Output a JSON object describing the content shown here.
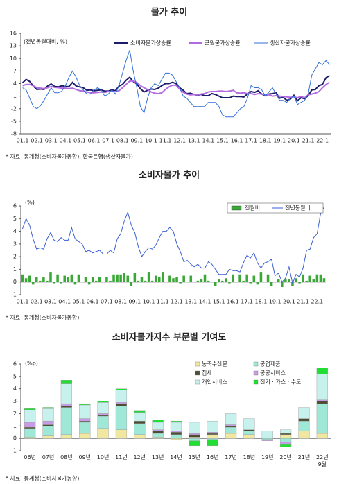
{
  "chart_data": [
    {
      "type": "line",
      "title": "물가 추이",
      "y_label": "(전년동월대비, %)",
      "source": "* 자료: 통계청(소비자물가동향), 한국은행(생산자물가)",
      "categories": [
        "01.1",
        null,
        null,
        null,
        "02.1",
        null,
        null,
        null,
        "03.1",
        null,
        null,
        null,
        "04.1",
        null,
        null,
        null,
        "05.1",
        null,
        null,
        null,
        "06.1",
        null,
        null,
        null,
        "07.1",
        null,
        null,
        null,
        "08.1",
        null,
        null,
        null,
        "09.1",
        null,
        null,
        null,
        "10.1",
        null,
        null,
        null,
        "11.1",
        null,
        null,
        null,
        "12.1",
        null,
        null,
        null,
        "13.1",
        null,
        null,
        null,
        "14.1",
        null,
        null,
        null,
        "15.1",
        null,
        null,
        null,
        "16.1",
        null,
        null,
        null,
        "17.1",
        null,
        null,
        null,
        "18.1",
        null,
        null,
        null,
        "19.1",
        null,
        null,
        null,
        "20.1",
        null,
        null,
        null,
        "21.1",
        null,
        null,
        null,
        "22.1",
        null,
        null
      ],
      "ylim": [
        -8,
        16
      ],
      "yticks": [
        -8,
        -5,
        -2,
        1,
        4,
        7,
        10,
        13,
        16
      ],
      "grid": false,
      "legend": "top-right",
      "series": [
        {
          "name": "소비자물가상승률",
          "color": "#1c1c6b",
          "width": 2,
          "values": [
            4.2,
            5.0,
            4.5,
            3.4,
            2.6,
            2.7,
            2.6,
            3.4,
            3.9,
            3.3,
            3.2,
            3.5,
            3.3,
            3.3,
            4.3,
            3.4,
            3.2,
            3.0,
            2.4,
            2.5,
            2.3,
            2.4,
            2.5,
            2.2,
            2.2,
            2.5,
            2.3,
            3.4,
            3.8,
            4.8,
            5.5,
            4.5,
            3.9,
            2.8,
            2.0,
            2.4,
            2.7,
            2.6,
            2.9,
            3.5,
            4.0,
            4.0,
            4.3,
            4.0,
            3.0,
            2.4,
            1.6,
            1.7,
            1.4,
            1.2,
            1.4,
            1.1,
            1.1,
            1.6,
            1.4,
            1.0,
            0.6,
            0.6,
            0.6,
            1.0,
            0.9,
            0.9,
            0.8,
            1.5,
            2.1,
            1.9,
            2.3,
            1.5,
            1.1,
            1.5,
            1.6,
            1.8,
            0.5,
            0.7,
            0.0,
            0.3,
            1.2,
            -0.1,
            0.6,
            0.4,
            1.1,
            2.5,
            2.6,
            3.5,
            3.8,
            5.4,
            5.9
          ]
        },
        {
          "name": "근원물가상승률",
          "color": "#b26ae0",
          "width": 2,
          "values": [
            3.5,
            3.8,
            3.8,
            3.5,
            3.0,
            2.9,
            2.8,
            3.0,
            3.3,
            3.1,
            3.0,
            2.9,
            2.9,
            2.8,
            2.9,
            2.6,
            2.3,
            2.2,
            2.0,
            1.8,
            1.8,
            1.9,
            2.0,
            1.9,
            2.1,
            2.1,
            2.1,
            2.3,
            3.0,
            3.8,
            4.6,
            4.6,
            4.3,
            3.5,
            3.0,
            2.6,
            2.0,
            1.7,
            1.6,
            1.8,
            2.6,
            3.2,
            3.6,
            3.6,
            2.7,
            1.9,
            1.5,
            1.3,
            1.4,
            1.3,
            1.5,
            1.6,
            2.0,
            2.1,
            2.1,
            2.2,
            2.2,
            2.1,
            2.2,
            2.4,
            1.8,
            1.7,
            1.8,
            1.6,
            1.6,
            1.4,
            1.6,
            1.5,
            1.3,
            1.3,
            1.0,
            1.1,
            1.0,
            0.9,
            0.8,
            0.7,
            0.8,
            0.6,
            0.9,
            0.6,
            1.3,
            1.5,
            1.7,
            2.1,
            3.0,
            3.8,
            4.3
          ]
        },
        {
          "name": "생산자물가상승률",
          "color": "#3070d8",
          "width": 1,
          "values": [
            3.0,
            2.5,
            0.5,
            -1.5,
            -2.0,
            -1.3,
            0.0,
            1.5,
            3.0,
            1.8,
            1.8,
            2.2,
            3.5,
            5.5,
            7.0,
            5.5,
            3.5,
            2.5,
            1.5,
            1.5,
            2.5,
            3.0,
            2.5,
            1.0,
            1.5,
            2.5,
            1.5,
            3.5,
            6.5,
            9.5,
            12.0,
            7.0,
            3.0,
            -1.5,
            -3.0,
            0.5,
            3.0,
            4.0,
            3.5,
            5.0,
            6.5,
            6.5,
            6.0,
            4.5,
            3.0,
            1.0,
            0.5,
            -0.5,
            -1.5,
            -1.5,
            -1.5,
            -1.5,
            -0.5,
            -0.5,
            -0.5,
            -1.5,
            -3.5,
            -4.0,
            -4.0,
            -4.0,
            -3.0,
            -2.0,
            -1.5,
            0.5,
            3.5,
            3.0,
            3.0,
            2.5,
            1.0,
            2.0,
            3.0,
            1.5,
            0.0,
            0.0,
            -0.5,
            0.5,
            1.0,
            -1.0,
            -0.5,
            0.0,
            1.5,
            6.0,
            7.5,
            9.0,
            8.5,
            9.5,
            8.5
          ]
        }
      ]
    },
    {
      "type": "combo",
      "title": "소비자물가 추이",
      "y_label": "(%)",
      "source": "* 자료: 통계청(소비자물가동향)",
      "categories": [
        "01.1",
        null,
        null,
        null,
        "02.1",
        null,
        null,
        null,
        "03.1",
        null,
        null,
        null,
        "04.1",
        null,
        null,
        null,
        "05.1",
        null,
        null,
        null,
        "06.1",
        null,
        null,
        null,
        "07.1",
        null,
        null,
        null,
        "08.1",
        null,
        null,
        null,
        "09.1",
        null,
        null,
        null,
        "10.1",
        null,
        null,
        null,
        "11.1",
        null,
        null,
        null,
        "12.1",
        null,
        null,
        null,
        "13.1",
        null,
        null,
        null,
        "14.1",
        null,
        null,
        null,
        "15.1",
        null,
        null,
        null,
        "16.1",
        null,
        null,
        null,
        "17.1",
        null,
        null,
        null,
        "18.1",
        null,
        null,
        null,
        "19.1",
        null,
        null,
        null,
        "20.1",
        null,
        null,
        null,
        "21.1",
        null,
        null,
        null,
        "22.1",
        null,
        null
      ],
      "ylim": [
        -1,
        6
      ],
      "yticks": [
        -1,
        0,
        1,
        2,
        3,
        4,
        5,
        6
      ],
      "grid": false,
      "legend": "top-right",
      "series": [
        {
          "name": "전월비",
          "type": "bar",
          "color": "#3aa836",
          "values": [
            0.6,
            0.3,
            0.5,
            -0.2,
            0.4,
            0.1,
            0.4,
            0.1,
            0.8,
            -0.1,
            0.6,
            -0.1,
            0.5,
            0.4,
            0.6,
            -0.2,
            0.6,
            0.0,
            0.4,
            -0.2,
            0.4,
            0.1,
            0.4,
            0.0,
            0.4,
            0.1,
            0.6,
            0.6,
            0.6,
            0.7,
            0.5,
            -0.3,
            0.7,
            0.1,
            0.4,
            0.1,
            0.8,
            0.1,
            0.5,
            0.4,
            0.8,
            0.0,
            0.5,
            0.3,
            0.4,
            -0.1,
            0.5,
            0.0,
            0.5,
            0.0,
            0.1,
            0.2,
            0.6,
            0.1,
            0.0,
            -0.3,
            0.2,
            0.1,
            0.3,
            -0.1,
            0.6,
            0.0,
            0.6,
            0.1,
            0.6,
            -0.1,
            0.5,
            -0.2,
            0.8,
            0.0,
            0.6,
            -0.3,
            0.0,
            0.2,
            -0.4,
            0.2,
            0.2,
            -0.3,
            0.3,
            -0.1,
            0.6,
            0.1,
            0.5,
            0.2,
            0.6,
            0.6,
            0.3
          ]
        },
        {
          "name": "전년동월비",
          "type": "line",
          "color": "#3a5fd0",
          "width": 1,
          "values": [
            4.2,
            5.0,
            4.5,
            3.4,
            2.6,
            2.7,
            2.6,
            3.4,
            3.9,
            3.3,
            3.2,
            3.5,
            3.3,
            3.3,
            4.3,
            3.4,
            3.2,
            3.0,
            2.4,
            2.5,
            2.3,
            2.4,
            2.5,
            2.2,
            2.2,
            2.5,
            2.3,
            3.4,
            3.8,
            4.8,
            5.5,
            4.5,
            3.9,
            2.8,
            2.0,
            2.4,
            2.7,
            2.6,
            2.9,
            3.5,
            4.0,
            4.0,
            4.3,
            4.0,
            3.0,
            2.4,
            1.6,
            1.7,
            1.4,
            1.2,
            1.4,
            1.1,
            1.1,
            1.6,
            1.4,
            1.0,
            0.6,
            0.6,
            0.6,
            1.0,
            0.9,
            0.9,
            0.8,
            1.5,
            2.1,
            1.9,
            2.3,
            1.5,
            1.1,
            1.5,
            1.6,
            1.8,
            0.5,
            0.7,
            0.0,
            0.3,
            1.2,
            -0.1,
            0.6,
            0.4,
            1.1,
            2.5,
            2.6,
            3.5,
            3.8,
            5.4,
            5.9
          ]
        }
      ]
    },
    {
      "type": "stacked_bar",
      "title": "소비자물가지수 부문별 기여도",
      "y_label": "(%p)",
      "source": "* 자료: 통계청(소비자물가동향)",
      "categories": [
        "06년",
        "07년",
        "08년",
        "09년",
        "10년",
        "11년",
        "12년",
        "13년",
        "14년",
        "15년",
        "16년",
        "17년",
        "18년",
        "19년",
        "20년",
        "21년",
        "22년\n9월"
      ],
      "ylim": [
        -1,
        6
      ],
      "yticks": [
        -1,
        0,
        1,
        2,
        3,
        4,
        5,
        6
      ],
      "grid": false,
      "legend": "top-right",
      "series": [
        {
          "name": "농축수산물",
          "color": "#f0e8a0",
          "values": [
            0.1,
            0.2,
            0.3,
            0.4,
            0.8,
            0.7,
            0.3,
            0.1,
            -0.1,
            0.1,
            0.3,
            0.4,
            0.3,
            0.0,
            0.3,
            0.6,
            0.4
          ]
        },
        {
          "name": "공업제품",
          "color": "#9fe8d8",
          "values": [
            0.7,
            0.8,
            2.2,
            0.9,
            1.0,
            1.9,
            0.9,
            0.3,
            0.3,
            -0.2,
            -0.1,
            0.5,
            0.3,
            -0.1,
            -0.3,
            0.8,
            2.4
          ]
        },
        {
          "name": "집세",
          "color": "#4d4d33",
          "values": [
            0.1,
            0.1,
            0.1,
            0.1,
            0.1,
            0.2,
            0.2,
            0.2,
            0.2,
            0.2,
            0.1,
            0.1,
            0.1,
            0.0,
            0.1,
            0.2,
            0.2
          ]
        },
        {
          "name": "공공서비스",
          "color": "#c89be6",
          "values": [
            0.4,
            0.3,
            0.2,
            0.2,
            0.1,
            0.1,
            0.0,
            0.1,
            0.1,
            0.1,
            0.1,
            0.1,
            0.0,
            -0.1,
            -0.2,
            0.0,
            0.1
          ]
        },
        {
          "name": "개인서비스",
          "color": "#c6f1ec",
          "values": [
            1.0,
            1.0,
            1.6,
            1.1,
            0.9,
            1.0,
            0.7,
            0.6,
            0.7,
            0.9,
            0.9,
            0.9,
            0.9,
            0.6,
            0.3,
            0.9,
            2.1
          ]
        },
        {
          "name": "전기 · 가스 · 수도",
          "color": "#22dd33",
          "values": [
            0.1,
            0.1,
            0.3,
            0.1,
            0.1,
            0.1,
            0.1,
            0.2,
            0.1,
            -0.4,
            -0.5,
            0.0,
            0.0,
            0.0,
            -0.2,
            0.0,
            0.5
          ]
        }
      ]
    }
  ]
}
